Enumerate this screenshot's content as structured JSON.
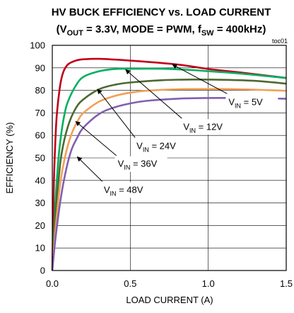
{
  "chart_data": {
    "type": "line",
    "title": "HV BUCK EFFICIENCY vs. LOAD CURRENT",
    "subtitle": {
      "open": "(V",
      "sub1": "OUT",
      "mid1": " = 3.3V, MODE = PWM, f",
      "sub2": "SW",
      "tail": " = 400kHz)"
    },
    "tag": "toc01",
    "xlabel": "LOAD CURRENT  (A)",
    "ylabel": "EFFICIENCY (%)",
    "xlim": [
      0,
      1.5
    ],
    "ylim": [
      0,
      100
    ],
    "xticks": [
      "0.0",
      "0.5",
      "1.0",
      "1.5"
    ],
    "xtick_values": [
      0,
      0.5,
      1.0,
      1.5
    ],
    "yticks": [
      "0",
      "10",
      "20",
      "30",
      "40",
      "50",
      "60",
      "70",
      "80",
      "90",
      "100"
    ],
    "ytick_values": [
      0,
      10,
      20,
      30,
      40,
      50,
      60,
      70,
      80,
      90,
      100
    ],
    "grid": true,
    "series": [
      {
        "color": "#c0001a",
        "x": [
          0,
          0.01,
          0.02,
          0.03,
          0.05,
          0.07,
          0.1,
          0.15,
          0.2,
          0.3,
          0.5,
          0.8,
          1.0,
          1.2,
          1.5
        ],
        "y": [
          0,
          38,
          58,
          70,
          82,
          88,
          91.5,
          93.2,
          93.8,
          94.0,
          93.2,
          91.5,
          89.5,
          88.0,
          85.5
        ]
      },
      {
        "color": "#00b060",
        "x": [
          0,
          0.02,
          0.04,
          0.06,
          0.08,
          0.1,
          0.15,
          0.2,
          0.3,
          0.4,
          0.5,
          0.7,
          0.9,
          1.0,
          1.2,
          1.5
        ],
        "y": [
          0,
          30,
          50,
          62,
          70,
          75,
          82,
          86,
          88.5,
          89.5,
          89.6,
          89.6,
          89.0,
          88.5,
          87.5,
          85.5
        ]
      },
      {
        "color": "#4c6a30",
        "x": [
          0,
          0.02,
          0.04,
          0.06,
          0.1,
          0.15,
          0.2,
          0.3,
          0.4,
          0.5,
          0.7,
          0.9,
          1.1,
          1.3,
          1.5
        ],
        "y": [
          0,
          25,
          40,
          52,
          64,
          72,
          76,
          80.5,
          82.5,
          83.5,
          84.5,
          84.8,
          84.7,
          84.2,
          83.0
        ]
      },
      {
        "color": "#f2a055",
        "x": [
          0,
          0.02,
          0.05,
          0.08,
          0.12,
          0.16,
          0.2,
          0.3,
          0.4,
          0.5,
          0.6,
          0.8,
          1.0,
          1.2,
          1.5
        ],
        "y": [
          0,
          18,
          38,
          50,
          60,
          66,
          70,
          75,
          77.5,
          79,
          79.8,
          80.5,
          80.6,
          80.5,
          79.8
        ]
      },
      {
        "color": "#8060b0",
        "x": [
          0,
          0.02,
          0.05,
          0.08,
          0.12,
          0.16,
          0.2,
          0.3,
          0.4,
          0.5,
          0.6,
          0.8,
          1.0,
          1.2,
          1.5
        ],
        "y": [
          0,
          14,
          30,
          42,
          53,
          59,
          63.5,
          69.5,
          72.5,
          74.2,
          75.3,
          76.3,
          76.6,
          76.6,
          76.3
        ]
      }
    ],
    "annotations": [
      {
        "sym": "V",
        "sub": "IN",
        "rest": " = 5V",
        "text_x": 1.13,
        "text_y": 73.5,
        "arrow_to": [
          0.77,
          91.5
        ]
      },
      {
        "sym": "V",
        "sub": "IN",
        "rest": " = 12V",
        "text_x": 0.84,
        "text_y": 62.5,
        "arrow_to": [
          0.47,
          89.2
        ]
      },
      {
        "sym": "V",
        "sub": "IN",
        "rest": " = 24V",
        "text_x": 0.54,
        "text_y": 54,
        "arrow_to": [
          0.29,
          80.5
        ]
      },
      {
        "sym": "V",
        "sub": "IN",
        "rest": " = 36V",
        "text_x": 0.42,
        "text_y": 46,
        "arrow_to": [
          0.15,
          66.2
        ]
      },
      {
        "sym": "V",
        "sub": "IN",
        "rest": " = 48V",
        "text_x": 0.33,
        "text_y": 34.5,
        "arrow_to": [
          0.16,
          50.5
        ]
      }
    ]
  }
}
